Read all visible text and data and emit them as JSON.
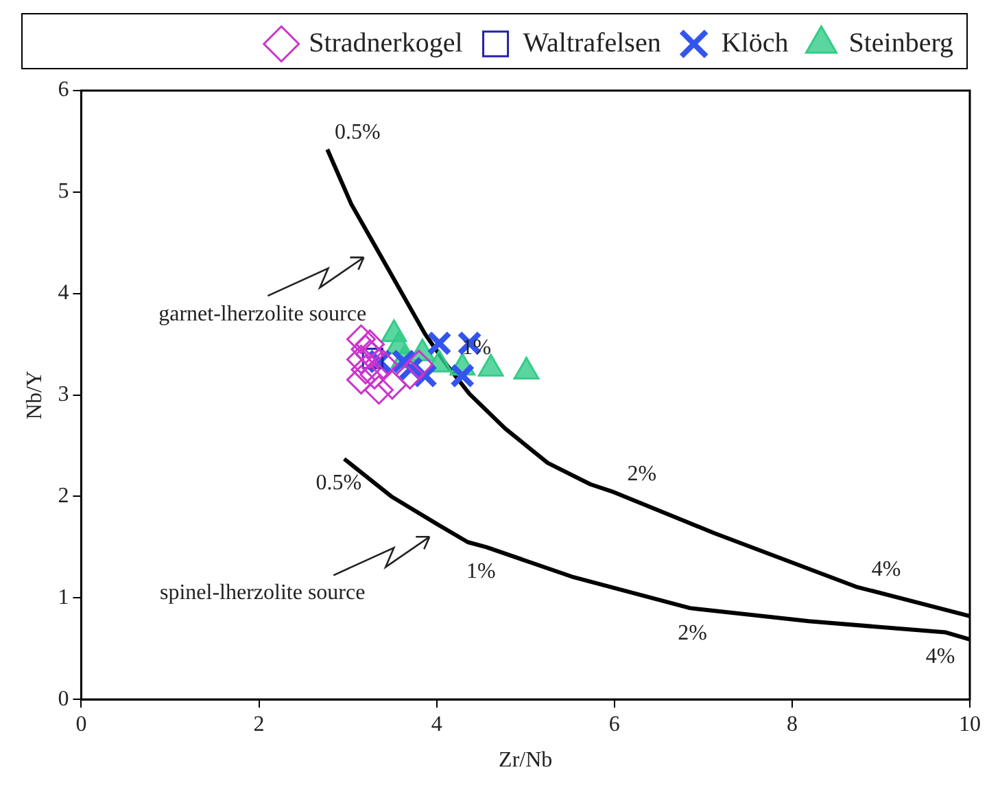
{
  "chart_data": {
    "type": "scatter",
    "xlabel": "Zr/Nb",
    "ylabel": "Nb/Y",
    "xlim": [
      0,
      10
    ],
    "ylim": [
      0,
      6
    ],
    "xticks": [
      0,
      2,
      4,
      6,
      8,
      10
    ],
    "yticks": [
      0,
      1,
      2,
      3,
      4,
      5,
      6
    ],
    "grid": false,
    "legend": "top",
    "series": [
      {
        "name": "Stradnerkogel",
        "color": "#cc33cc",
        "marker": "diamond",
        "x": [
          3.15,
          3.2,
          3.15,
          3.2,
          3.15,
          3.3,
          3.25,
          3.4,
          3.5,
          3.35,
          3.7,
          3.8,
          3.25
        ],
        "values": [
          3.55,
          3.45,
          3.35,
          3.25,
          3.15,
          3.2,
          3.4,
          3.3,
          3.1,
          3.05,
          3.2,
          3.3,
          3.5
        ]
      },
      {
        "name": "Waltrafelsen",
        "color": "#2222aa",
        "marker": "square",
        "x": [
          3.28
        ],
        "values": [
          3.36
        ]
      },
      {
        "name": "Klöch",
        "color": "#3355ee",
        "marker": "cross",
        "x": [
          3.36,
          3.71,
          4.03,
          4.37,
          4.29,
          3.87,
          3.63
        ],
        "values": [
          3.33,
          3.26,
          3.51,
          3.51,
          3.19,
          3.19,
          3.33
        ]
      },
      {
        "name": "Steinberg",
        "color": "#33cc88",
        "marker": "triangle",
        "x": [
          3.52,
          3.57,
          3.84,
          4.03,
          4.29,
          4.61,
          5.01,
          3.63
        ],
        "values": [
          3.6,
          3.48,
          3.41,
          3.3,
          3.27,
          3.26,
          3.23,
          3.34
        ]
      },
      {
        "type": "line",
        "color": "#000000",
        "marker": "none",
        "x": [
          2.77,
          3.04,
          3.3,
          3.87,
          4.11,
          4.37,
          4.77,
          5.25,
          5.73,
          5.97,
          7.12,
          8.72,
          10
        ],
        "values": [
          5.42,
          4.88,
          4.48,
          3.6,
          3.3,
          3.01,
          2.67,
          2.33,
          2.12,
          2.05,
          1.64,
          1.11,
          0.82
        ]
      },
      {
        "type": "line",
        "color": "#000000",
        "marker": "none",
        "x": [
          2.96,
          3.49,
          4.0,
          4.35,
          4.56,
          5.52,
          6.85,
          6.94,
          8.19,
          9.73,
          10
        ],
        "values": [
          2.37,
          2.0,
          1.73,
          1.55,
          1.5,
          1.21,
          0.9,
          0.89,
          0.77,
          0.66,
          0.59
        ]
      }
    ],
    "annotations": [
      {
        "text": "0.5%",
        "x": 2.77,
        "y": 5.42
      },
      {
        "text": "1%",
        "x": 4.11,
        "y": 3.3
      },
      {
        "text": "2%",
        "x": 5.97,
        "y": 2.05
      },
      {
        "text": "4%",
        "x": 8.72,
        "y": 1.11
      },
      {
        "text": "0.5%",
        "x": 2.96,
        "y": 2.37
      },
      {
        "text": "1%",
        "x": 4.56,
        "y": 1.5
      },
      {
        "text": "2%",
        "x": 6.94,
        "y": 0.89
      },
      {
        "text": "4%",
        "x": 9.73,
        "y": 0.66
      },
      "garnet-lherzolite source",
      "spinel-lherzolite source"
    ]
  }
}
